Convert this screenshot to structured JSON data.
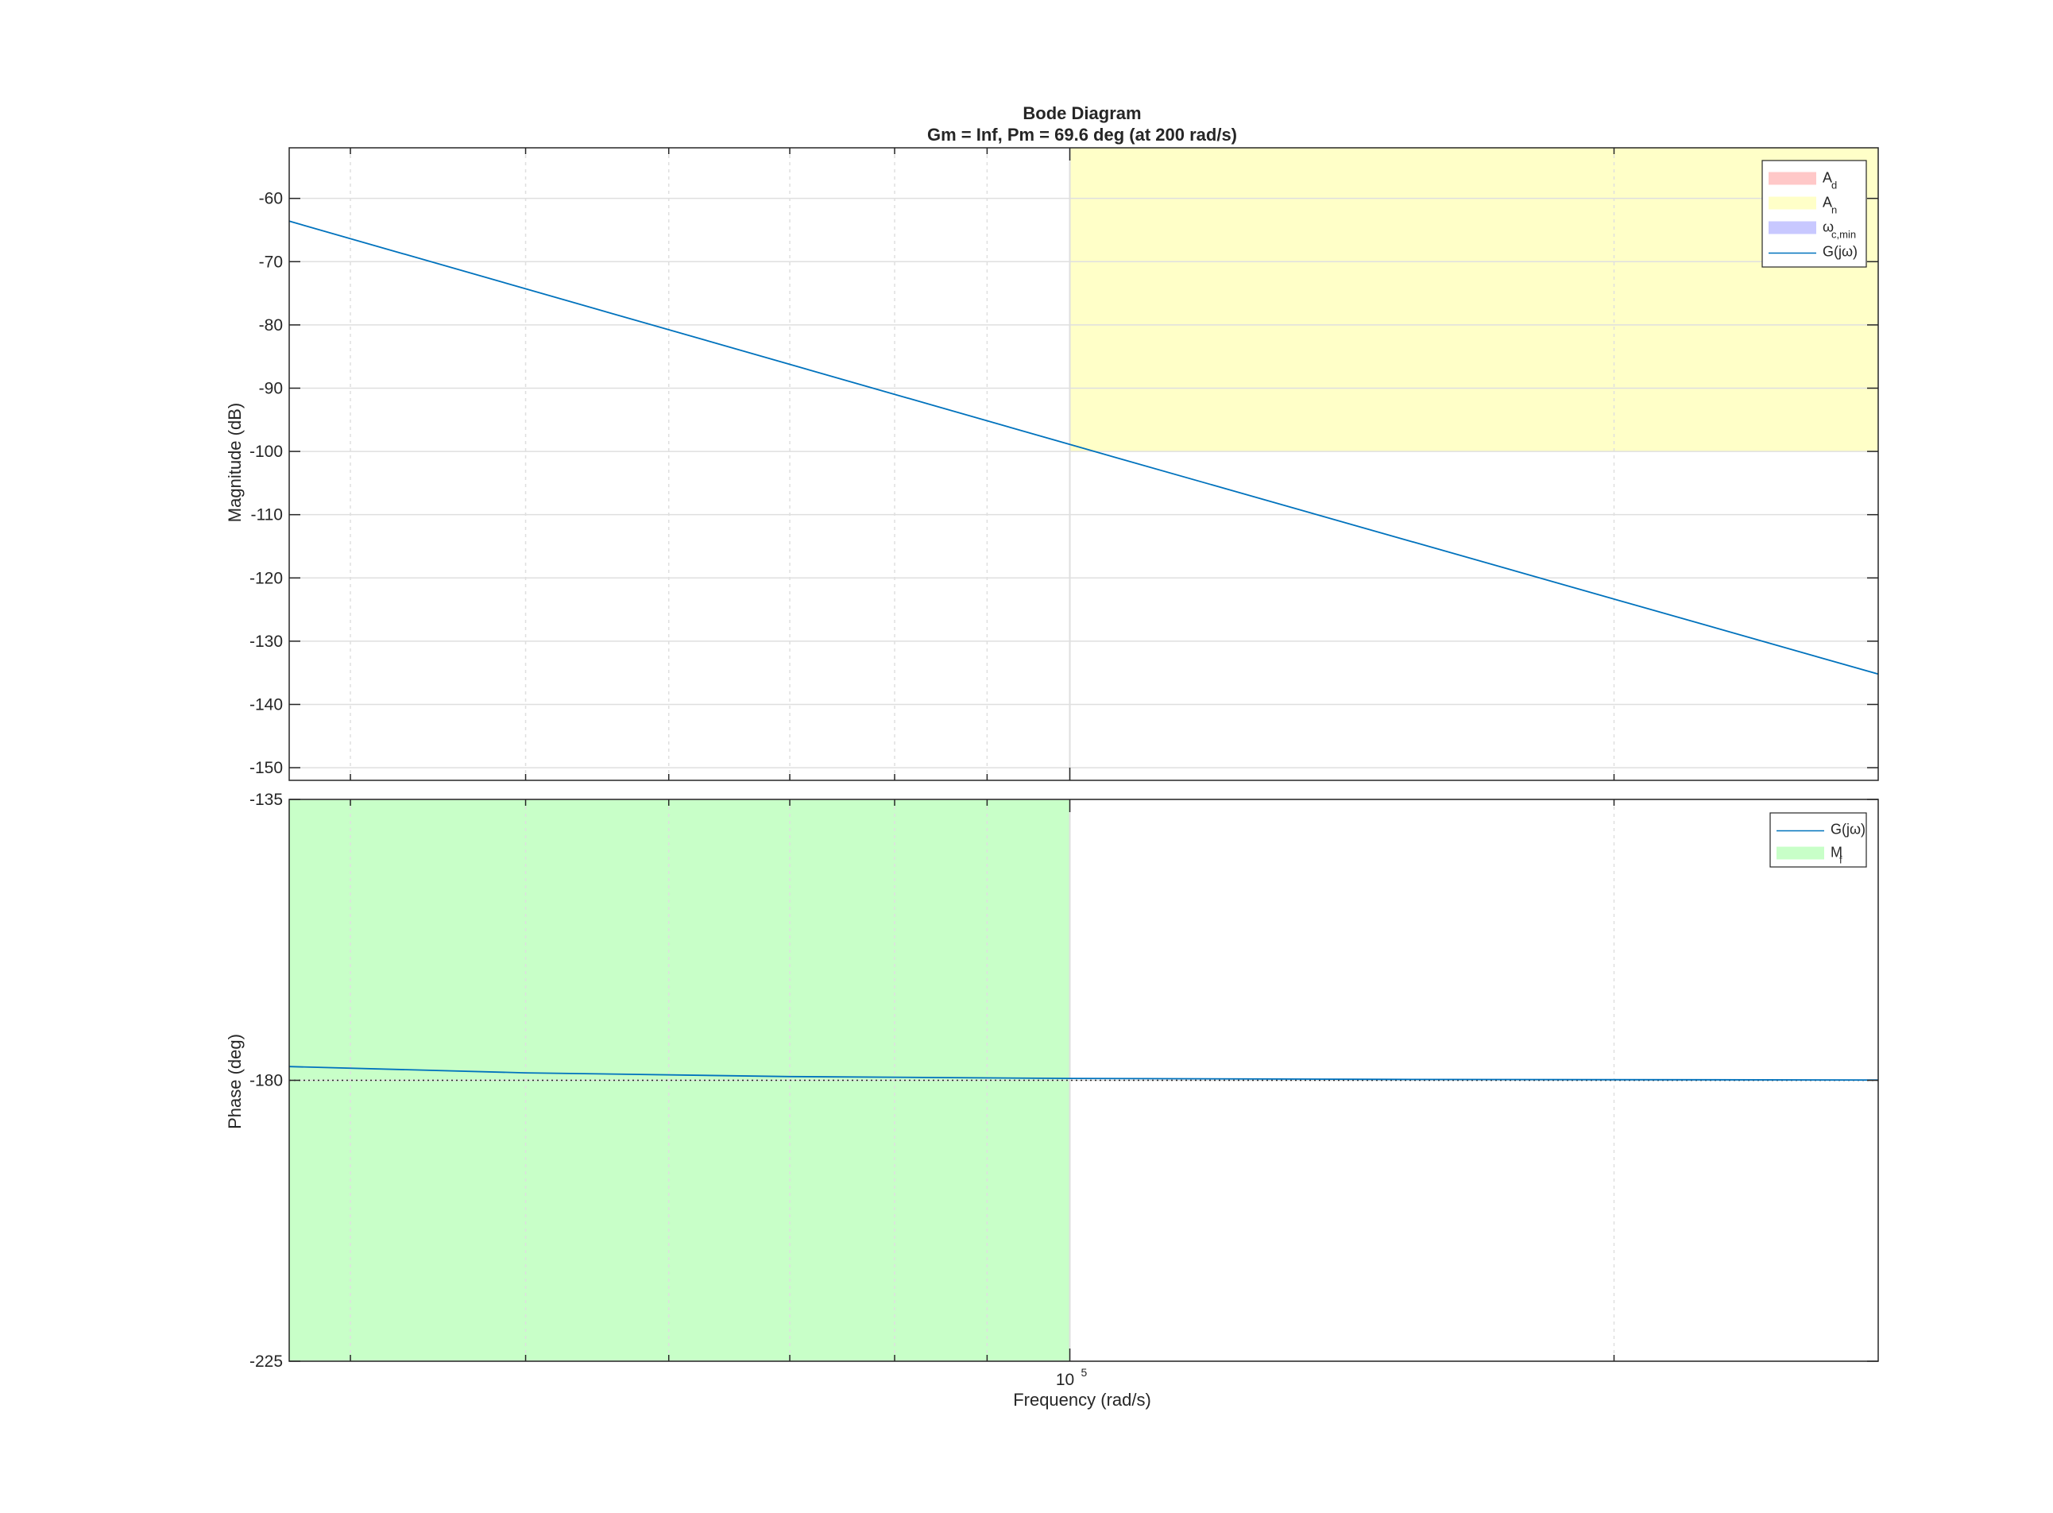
{
  "chart_data": {
    "type": "line",
    "title": "Bode Diagram",
    "subtitle": "Gm = Inf,  Pm = 69.6 deg (at 200 rad/s)",
    "xlabel": "Frequency  (rad/s)",
    "x_scale": "log",
    "xlim": [
      37000,
      280000
    ],
    "x_tick_labels": [
      {
        "base": "10",
        "exp": "5",
        "value": 100000
      }
    ],
    "grid": true,
    "colors": {
      "line": "#0072bd",
      "A_d": "#ffc8c8",
      "A_n": "#ffffc8",
      "omega_c_min": "#c8c8ff",
      "M_f": "#c8ffc8",
      "axes": "#262626",
      "grid": "#dfdfdf"
    },
    "magnitude": {
      "ylabel": "Magnitude (dB)",
      "ylim": [
        -152,
        -52
      ],
      "y_ticks": [
        -60,
        -70,
        -80,
        -90,
        -100,
        -110,
        -120,
        -130,
        -140,
        -150
      ],
      "y_tick_labels": [
        "-60",
        "-70",
        "-80",
        "-90",
        "-100",
        "-110",
        "-120",
        "-130",
        "-140",
        "-150"
      ],
      "series": [
        {
          "name": "G(jω)",
          "x": [
            37000,
            100000,
            280000
          ],
          "y": [
            -63.6,
            -98.9,
            -135.2
          ]
        }
      ],
      "regions": [
        {
          "name": "A_n",
          "x": [
            100000,
            280000
          ],
          "y": [
            -100,
            -52
          ]
        }
      ],
      "legend": {
        "placement": "top-right",
        "entries": [
          {
            "base": "A",
            "sub": "d",
            "kind": "patch",
            "color_key": "A_d"
          },
          {
            "base": "A",
            "sub": "n",
            "kind": "patch",
            "color_key": "A_n"
          },
          {
            "base": "ω",
            "sub": "c,min",
            "kind": "patch",
            "color_key": "omega_c_min"
          },
          {
            "base": "G(jω)",
            "sub": "",
            "kind": "line",
            "color_key": "line"
          }
        ]
      }
    },
    "phase": {
      "ylabel": "Phase (deg)",
      "ylim": [
        -225,
        -135
      ],
      "y_ticks": [
        -135,
        -180,
        -225
      ],
      "y_tick_labels": [
        "-135",
        "-180",
        "-225"
      ],
      "reference_line": -180,
      "series": [
        {
          "name": "G(jω)",
          "x": [
            37000,
            50000,
            70000,
            100000,
            150000,
            280000
          ],
          "y": [
            -177.8,
            -178.8,
            -179.4,
            -179.7,
            -179.85,
            -179.95
          ]
        }
      ],
      "regions": [
        {
          "name": "M_f",
          "x": [
            37000,
            100000
          ],
          "y": [
            -225,
            -135
          ]
        }
      ],
      "legend": {
        "placement": "top-right",
        "entries": [
          {
            "base": "G(jω)",
            "sub": "",
            "kind": "line",
            "color_key": "line"
          },
          {
            "base": "M",
            "sub": "f",
            "kind": "patch",
            "color_key": "M_f"
          }
        ]
      }
    }
  }
}
